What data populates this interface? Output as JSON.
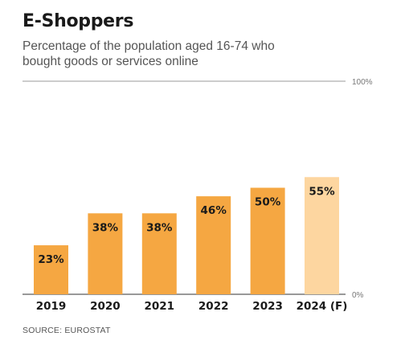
{
  "chart_data": {
    "type": "bar",
    "title": "E-Shoppers",
    "subtitle": "Percentage of the population aged 16-74 who bought goods or services online",
    "categories": [
      "2019",
      "2020",
      "2021",
      "2022",
      "2023",
      "2024 (F)"
    ],
    "values": [
      23,
      38,
      38,
      46,
      50,
      55
    ],
    "data_labels": [
      "23%",
      "38%",
      "38%",
      "46%",
      "50%",
      "55%"
    ],
    "ylim": [
      0,
      100
    ],
    "y_ticks": [
      "0%",
      "100%"
    ],
    "grid": false,
    "source": "SOURCE: EUROSTAT",
    "colors": {
      "bar": "#f5a742",
      "forecast_bar": "#fdd6a0",
      "axis": "#999999"
    },
    "forecast_index": 5
  }
}
